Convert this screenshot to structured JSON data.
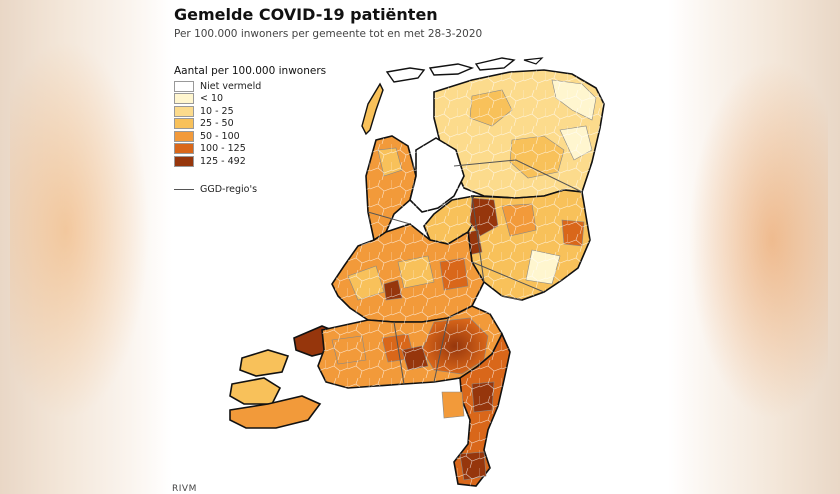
{
  "title": "Gemelde COVID-19 patiënten",
  "subtitle": "Per 100.000 inwoners per gemeente tot en met 28-3-2020",
  "legend": {
    "title": "Aantal per 100.000 inwoners",
    "items": [
      {
        "label": "Niet vermeld",
        "color": "#ffffff"
      },
      {
        "label": "< 10",
        "color": "#fff6cf"
      },
      {
        "label": "10 - 25",
        "color": "#fcdb8c"
      },
      {
        "label": "25 - 50",
        "color": "#f8c15a"
      },
      {
        "label": "50 - 100",
        "color": "#f29a3a"
      },
      {
        "label": "100 - 125",
        "color": "#d9671a"
      },
      {
        "label": "125 - 492",
        "color": "#96360c"
      }
    ],
    "ggd_label": "GGD-regio's"
  },
  "source": "RIVM"
}
